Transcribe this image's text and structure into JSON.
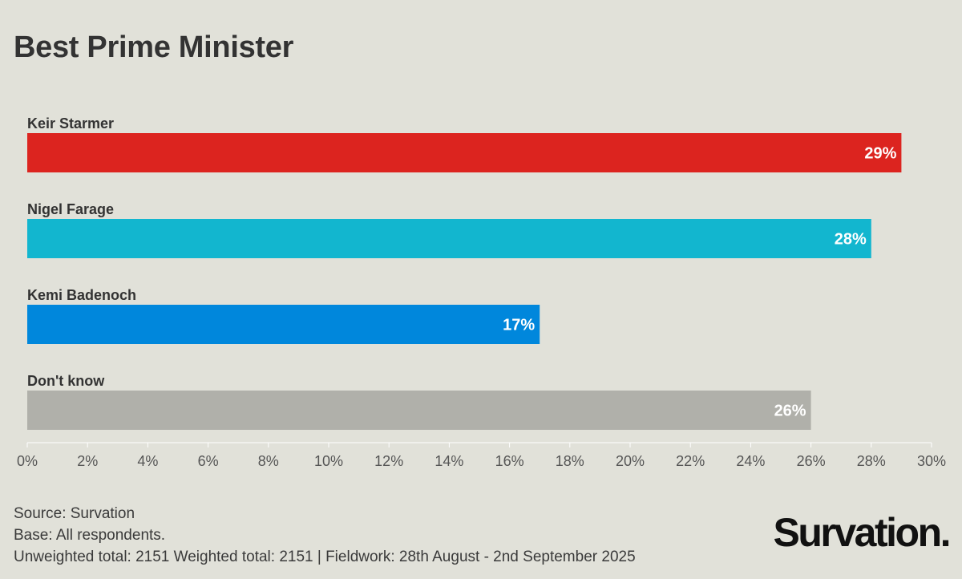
{
  "title": "Best Prime Minister",
  "chart_data": {
    "type": "bar",
    "orientation": "horizontal",
    "title": "Best Prime Minister",
    "categories": [
      "Keir Starmer",
      "Nigel Farage",
      "Kemi Badenoch",
      "Don't know"
    ],
    "values": [
      29,
      28,
      17,
      26
    ],
    "value_labels": [
      "29%",
      "28%",
      "17%",
      "26%"
    ],
    "colors": [
      "#dc241f",
      "#12b6cf",
      "#0087dc",
      "#b0b0aa"
    ],
    "xlim": [
      0,
      30
    ],
    "x_ticks": [
      0,
      2,
      4,
      6,
      8,
      10,
      12,
      14,
      16,
      18,
      20,
      22,
      24,
      26,
      28,
      30
    ],
    "x_tick_labels": [
      "0%",
      "2%",
      "4%",
      "6%",
      "8%",
      "10%",
      "12%",
      "14%",
      "16%",
      "18%",
      "20%",
      "22%",
      "24%",
      "26%",
      "28%",
      "30%"
    ],
    "xlabel": "",
    "ylabel": "",
    "grid": false
  },
  "footer": {
    "source": "Source: Survation",
    "base": "Base: All respondents.",
    "totals": "Unweighted total: 2151 Weighted total: 2151 | Fieldwork: 28th August - 2nd September 2025"
  },
  "logo_text": "Survation."
}
